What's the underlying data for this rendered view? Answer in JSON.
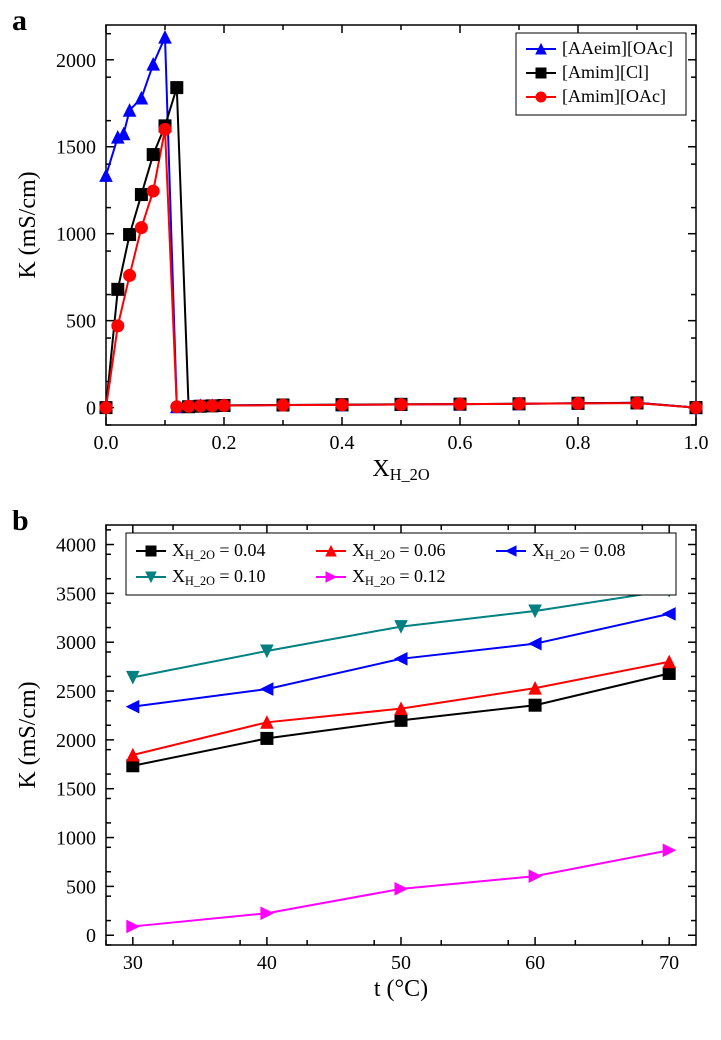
{
  "chart_a": {
    "label": "a",
    "type": "line",
    "xlabel": "X_{H_2O}",
    "ylabel": "K (mS/cm)",
    "xlim": [
      0.0,
      1.0
    ],
    "ylim": [
      -100,
      2200
    ],
    "xticks": [
      0.0,
      0.2,
      0.4,
      0.6,
      0.8,
      1.0
    ],
    "yticks": [
      0,
      500,
      1000,
      1500,
      2000
    ],
    "xminor_step": 0.1,
    "yminor_step": 250,
    "background_color": "#ffffff",
    "line_width": 2,
    "marker_size": 6,
    "tick_fontsize": 20,
    "label_fontsize": 24,
    "legend_fontsize": 18,
    "legend_position": "upper-right",
    "series": [
      {
        "name": "[AAeim][OAc]",
        "color": "#0000ff",
        "marker": "triangle-up",
        "data": [
          [
            0.0,
            1335
          ],
          [
            0.02,
            1555
          ],
          [
            0.03,
            1575
          ],
          [
            0.04,
            1710
          ],
          [
            0.06,
            1780
          ],
          [
            0.08,
            1975
          ],
          [
            0.1,
            2130
          ],
          [
            0.12,
            5
          ],
          [
            0.14,
            10
          ],
          [
            0.16,
            12
          ],
          [
            0.18,
            12
          ],
          [
            0.2,
            13
          ],
          [
            0.3,
            15
          ],
          [
            0.4,
            16
          ],
          [
            0.5,
            18
          ],
          [
            0.6,
            20
          ],
          [
            0.7,
            22
          ],
          [
            0.8,
            25
          ],
          [
            0.9,
            28
          ],
          [
            1.0,
            0
          ]
        ]
      },
      {
        "name": "[Amim][Cl]",
        "color": "#000000",
        "marker": "square",
        "data": [
          [
            0.0,
            0
          ],
          [
            0.02,
            680
          ],
          [
            0.04,
            995
          ],
          [
            0.06,
            1225
          ],
          [
            0.08,
            1455
          ],
          [
            0.1,
            1620
          ],
          [
            0.12,
            1840
          ],
          [
            0.14,
            5
          ],
          [
            0.16,
            8
          ],
          [
            0.18,
            10
          ],
          [
            0.2,
            12
          ],
          [
            0.3,
            15
          ],
          [
            0.4,
            17
          ],
          [
            0.5,
            19
          ],
          [
            0.6,
            20
          ],
          [
            0.7,
            22
          ],
          [
            0.8,
            25
          ],
          [
            0.9,
            27
          ],
          [
            1.0,
            0
          ]
        ]
      },
      {
        "name": "[Amim][OAc]",
        "color": "#ff0000",
        "marker": "circle",
        "data": [
          [
            0.0,
            0
          ],
          [
            0.02,
            470
          ],
          [
            0.04,
            760
          ],
          [
            0.06,
            1035
          ],
          [
            0.08,
            1245
          ],
          [
            0.1,
            1600
          ],
          [
            0.12,
            5
          ],
          [
            0.14,
            8
          ],
          [
            0.16,
            10
          ],
          [
            0.18,
            11
          ],
          [
            0.2,
            12
          ],
          [
            0.3,
            14
          ],
          [
            0.4,
            16
          ],
          [
            0.5,
            18
          ],
          [
            0.6,
            20
          ],
          [
            0.7,
            22
          ],
          [
            0.8,
            24
          ],
          [
            0.9,
            26
          ],
          [
            1.0,
            0
          ]
        ]
      }
    ]
  },
  "chart_b": {
    "label": "b",
    "type": "line",
    "xlabel": "t (°C)",
    "ylabel": "K (mS/cm)",
    "xlim": [
      28,
      72
    ],
    "ylim": [
      -100,
      4200
    ],
    "xticks": [
      30,
      40,
      50,
      60,
      70
    ],
    "yticks": [
      0,
      500,
      1000,
      1500,
      2000,
      2500,
      3000,
      3500,
      4000
    ],
    "xminor_step": 5,
    "yminor_step": 250,
    "background_color": "#ffffff",
    "line_width": 2,
    "marker_size": 6,
    "tick_fontsize": 20,
    "label_fontsize": 24,
    "legend_fontsize": 18,
    "legend_position": "upper-left",
    "series": [
      {
        "name": "X_{H_2O} = 0.04",
        "color": "#000000",
        "marker": "square",
        "data": [
          [
            30,
            1735
          ],
          [
            40,
            2015
          ],
          [
            50,
            2200
          ],
          [
            60,
            2355
          ],
          [
            70,
            2680
          ]
        ]
      },
      {
        "name": "X_{H_2O} = 0.06",
        "color": "#ff0000",
        "marker": "triangle-up",
        "data": [
          [
            30,
            1845
          ],
          [
            40,
            2180
          ],
          [
            50,
            2320
          ],
          [
            60,
            2530
          ],
          [
            70,
            2800
          ]
        ]
      },
      {
        "name": "X_{H_2O} = 0.08",
        "color": "#0000ff",
        "marker": "triangle-left",
        "data": [
          [
            30,
            2340
          ],
          [
            40,
            2520
          ],
          [
            50,
            2830
          ],
          [
            60,
            2985
          ],
          [
            70,
            3290
          ]
        ]
      },
      {
        "name": "X_{H_2O} = 0.10",
        "color": "#008080",
        "marker": "triangle-down",
        "data": [
          [
            30,
            2640
          ],
          [
            40,
            2910
          ],
          [
            50,
            3160
          ],
          [
            60,
            3320
          ],
          [
            70,
            3530
          ]
        ]
      },
      {
        "name": "X_{H_2O} = 0.12",
        "color": "#ff00ff",
        "marker": "triangle-right",
        "data": [
          [
            30,
            90
          ],
          [
            40,
            225
          ],
          [
            50,
            475
          ],
          [
            60,
            605
          ],
          [
            70,
            870
          ]
        ]
      }
    ]
  }
}
